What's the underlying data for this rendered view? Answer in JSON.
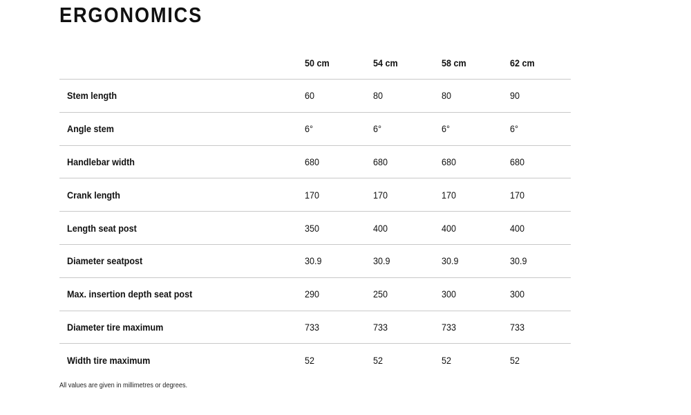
{
  "title": "ERGONOMICS",
  "columns": [
    "50 cm",
    "54 cm",
    "58 cm",
    "62 cm"
  ],
  "rows": [
    {
      "label": "Stem length",
      "values": [
        "60",
        "80",
        "80",
        "90"
      ]
    },
    {
      "label": "Angle stem",
      "values": [
        "6°",
        "6°",
        "6°",
        "6°"
      ]
    },
    {
      "label": "Handlebar width",
      "values": [
        "680",
        "680",
        "680",
        "680"
      ]
    },
    {
      "label": "Crank length",
      "values": [
        "170",
        "170",
        "170",
        "170"
      ]
    },
    {
      "label": "Length seat post",
      "values": [
        "350",
        "400",
        "400",
        "400"
      ]
    },
    {
      "label": "Diameter seatpost",
      "values": [
        "30.9",
        "30.9",
        "30.9",
        "30.9"
      ]
    },
    {
      "label": "Max. insertion depth seat post",
      "values": [
        "290",
        "250",
        "300",
        "300"
      ]
    },
    {
      "label": "Diameter tire maximum",
      "values": [
        "733",
        "733",
        "733",
        "733"
      ]
    },
    {
      "label": "Width tire maximum",
      "values": [
        "52",
        "52",
        "52",
        "52"
      ]
    }
  ],
  "footnote": "All values are given in millimetres or degrees."
}
